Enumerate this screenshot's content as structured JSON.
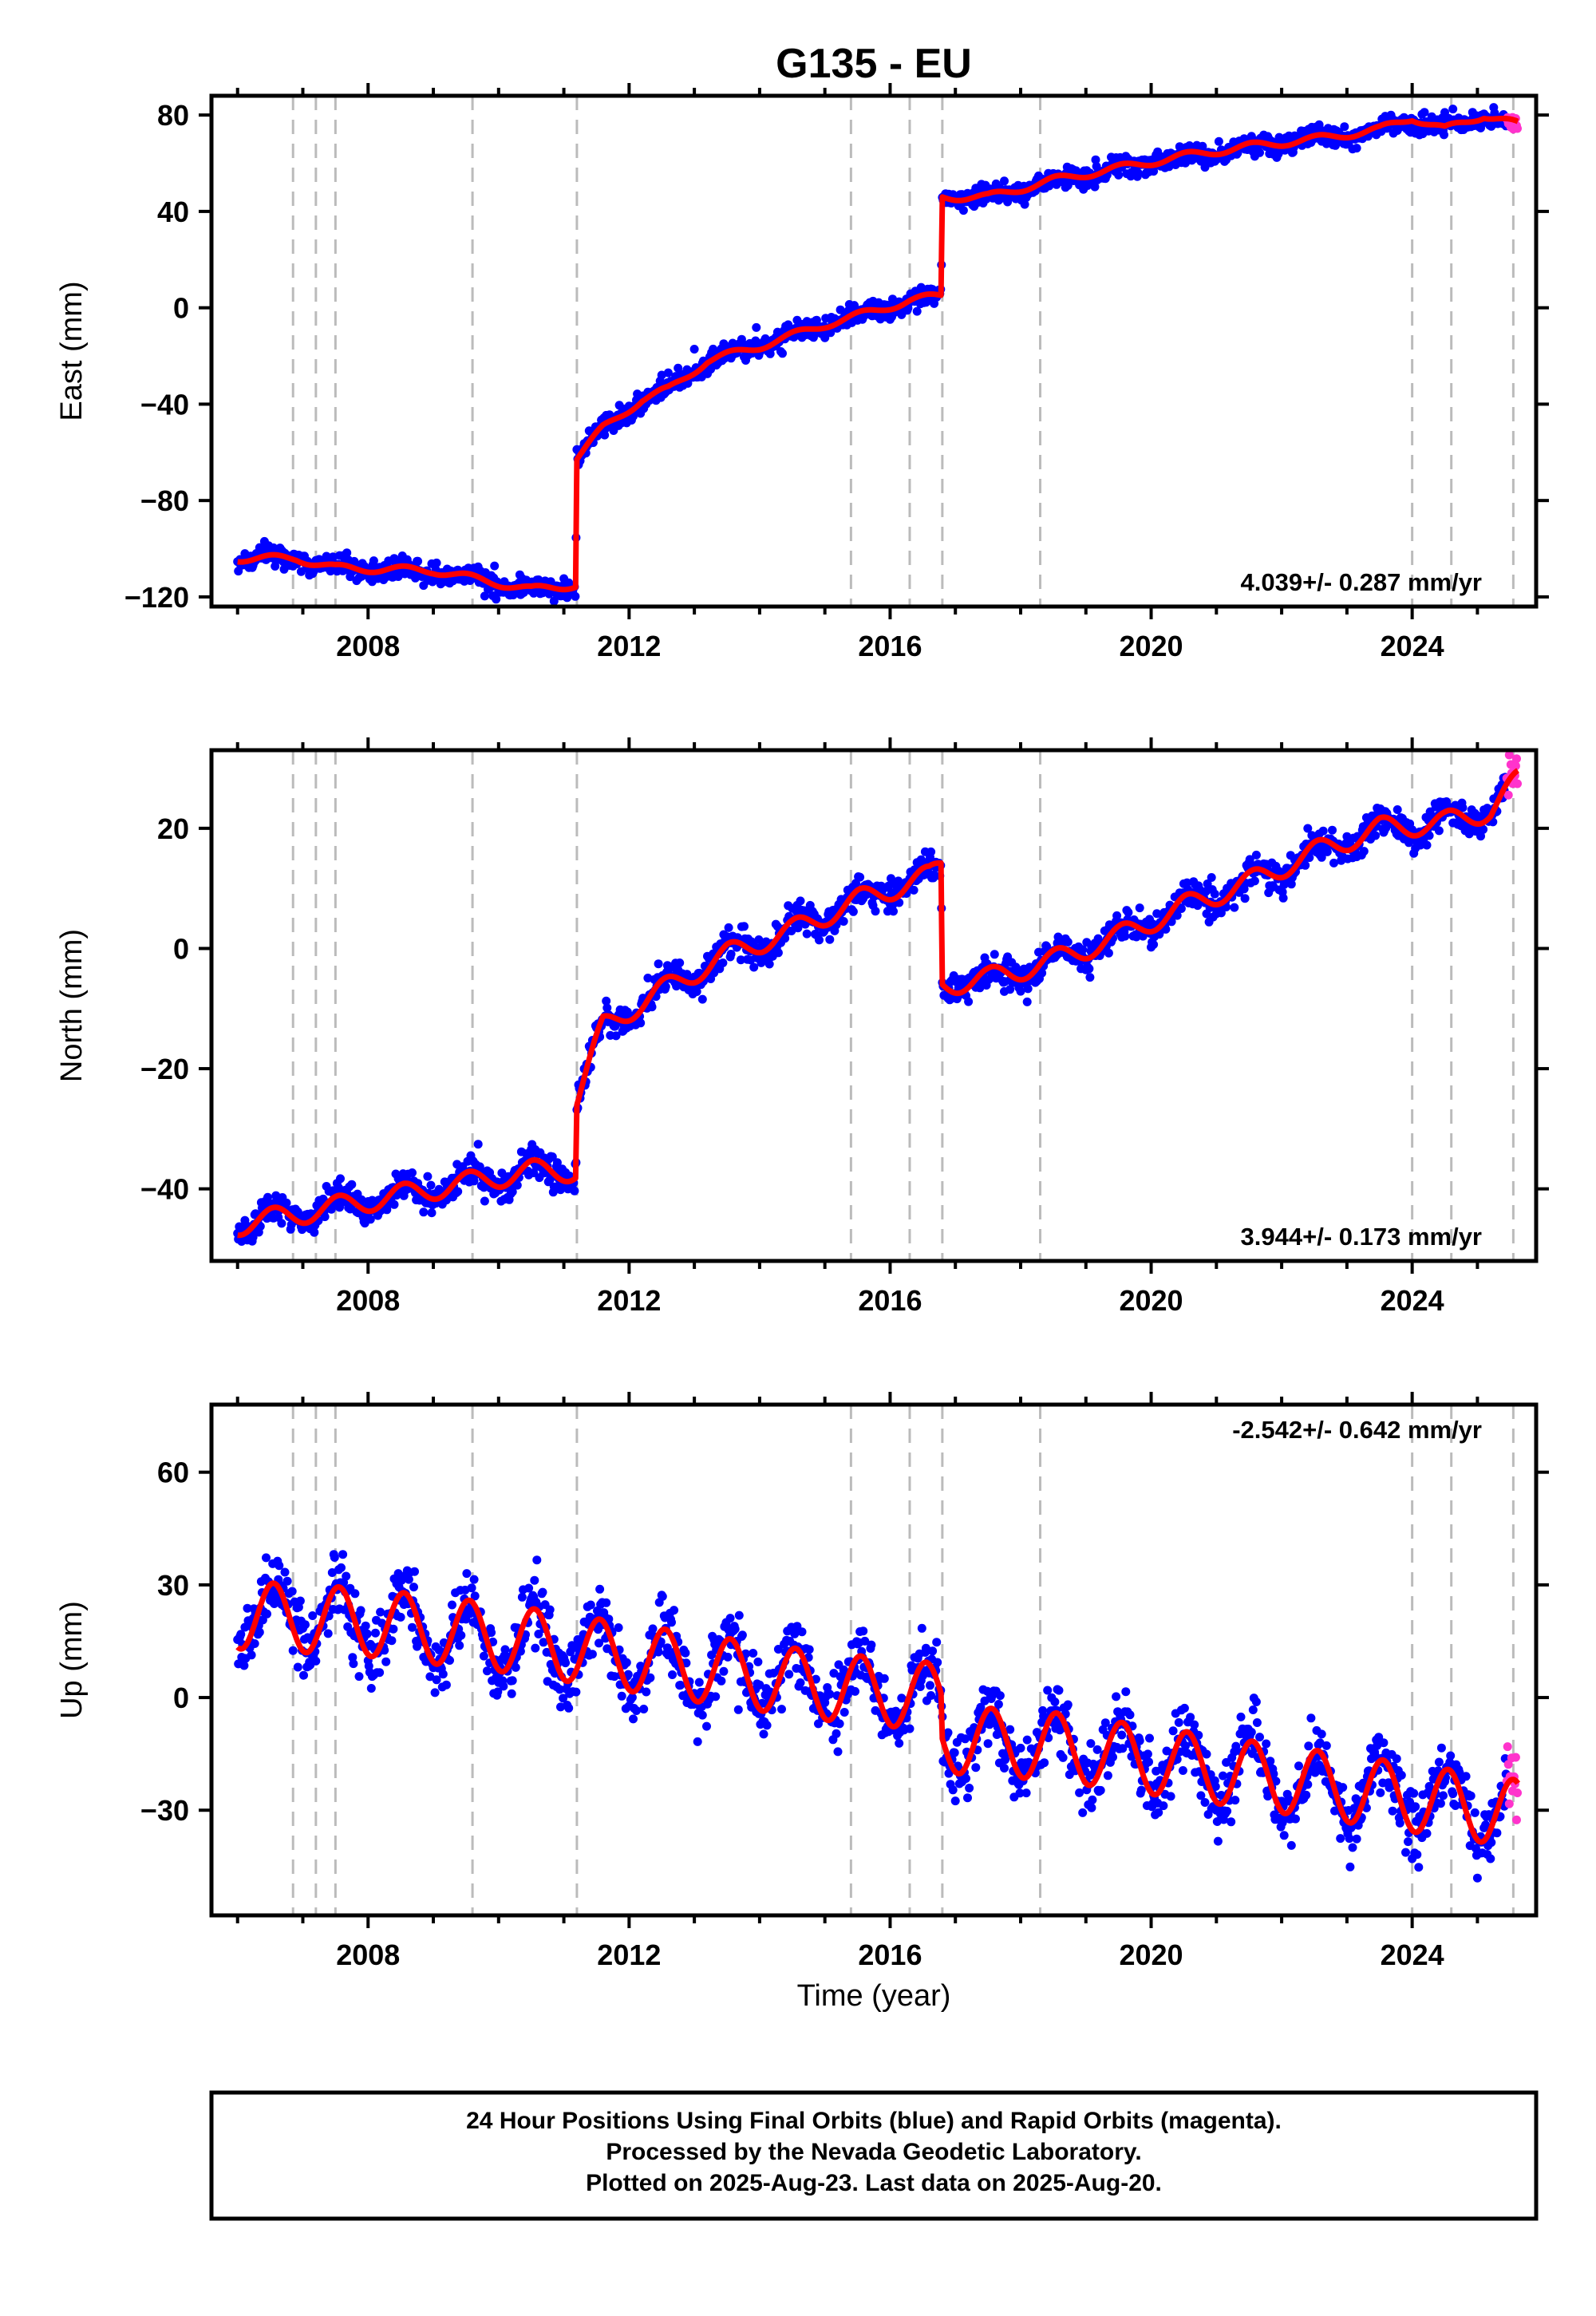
{
  "title": "G135 - EU",
  "xlabel": "Time (year)",
  "x_ticks": [
    "2008",
    "2012",
    "2016",
    "2020",
    "2024"
  ],
  "footer": {
    "line1": "24 Hour Positions Using Final Orbits (blue) and Rapid Orbits (magenta).",
    "line2": "Processed by the Nevada Geodetic Laboratory.",
    "line3": "Plotted on 2025-Aug-23. Last data on 2025-Aug-20."
  },
  "colors": {
    "final_orbits": "#0000ff",
    "rapid_orbits": "#ff33cc",
    "model_fit": "#ff0000",
    "event_lines": "#bbbbbb",
    "frame": "#000000"
  },
  "chart_data": [
    {
      "type": "scatter",
      "component": "east",
      "ylabel": "East (mm)",
      "rate_label": "4.039+/- 0.287 mm/yr",
      "rate_label_position": "bottom-right",
      "xlim": [
        2005.6,
        2025.9
      ],
      "ylim": [
        -124,
        88
      ],
      "y_ticks": [
        -120,
        -80,
        -40,
        0,
        40,
        80
      ],
      "event_lines": [
        2006.85,
        2007.2,
        2007.5,
        2009.6,
        2011.2,
        2015.4,
        2016.3,
        2016.8,
        2018.3,
        2024.0,
        2024.6,
        2025.55
      ],
      "rapid_start": 2025.45,
      "trend": [
        [
          2006.0,
          -104
        ],
        [
          2006.9,
          -104
        ],
        [
          2007.5,
          -108
        ],
        [
          2009.0,
          -109
        ],
        [
          2010.5,
          -117
        ],
        [
          2011.18,
          -115
        ],
        [
          2011.2,
          -62
        ],
        [
          2011.6,
          -50
        ],
        [
          2012.2,
          -38
        ],
        [
          2012.6,
          -34
        ],
        [
          2013.2,
          -22
        ],
        [
          2014.0,
          -16
        ],
        [
          2015.0,
          -7
        ],
        [
          2015.8,
          -1
        ],
        [
          2016.3,
          3
        ],
        [
          2016.78,
          5
        ],
        [
          2016.8,
          46
        ],
        [
          2017.5,
          46
        ],
        [
          2018.5,
          53
        ],
        [
          2019.5,
          58
        ],
        [
          2020.5,
          63
        ],
        [
          2021.5,
          67
        ],
        [
          2022.5,
          70
        ],
        [
          2023.5,
          74
        ],
        [
          2024.0,
          79
        ],
        [
          2024.5,
          74
        ],
        [
          2025.1,
          80
        ],
        [
          2025.62,
          76
        ]
      ],
      "seasonal_amplitude": 1.5,
      "noise": 2.2
    },
    {
      "type": "scatter",
      "component": "north",
      "ylabel": "North (mm)",
      "rate_label": "3.944+/- 0.173 mm/yr",
      "rate_label_position": "bottom-right",
      "xlim": [
        2005.6,
        2025.9
      ],
      "ylim": [
        -52,
        33
      ],
      "y_ticks": [
        -40,
        -20,
        0,
        20
      ],
      "event_lines": [
        2006.85,
        2007.2,
        2007.5,
        2009.6,
        2011.2,
        2015.4,
        2016.3,
        2016.8,
        2018.3,
        2024.0,
        2024.6,
        2025.55
      ],
      "rapid_start": 2025.45,
      "trend": [
        [
          2006.0,
          -46
        ],
        [
          2007.5,
          -43
        ],
        [
          2009.0,
          -40
        ],
        [
          2010.5,
          -37
        ],
        [
          2011.18,
          -37
        ],
        [
          2011.2,
          -25
        ],
        [
          2011.6,
          -13
        ],
        [
          2012.5,
          -7
        ],
        [
          2013.5,
          -1
        ],
        [
          2014.5,
          3
        ],
        [
          2015.5,
          8
        ],
        [
          2016.6,
          12
        ],
        [
          2016.78,
          14
        ],
        [
          2016.8,
          -6
        ],
        [
          2017.5,
          -5
        ],
        [
          2018.5,
          -2
        ],
        [
          2019.5,
          2
        ],
        [
          2020.5,
          7
        ],
        [
          2021.5,
          11
        ],
        [
          2022.5,
          16
        ],
        [
          2023.5,
          20
        ],
        [
          2024.5,
          21
        ],
        [
          2025.2,
          23
        ],
        [
          2025.62,
          28
        ]
      ],
      "seasonal_amplitude": 1.8,
      "noise": 1.3
    },
    {
      "type": "scatter",
      "component": "up",
      "ylabel": "Up (mm)",
      "rate_label": "-2.542+/- 0.642 mm/yr",
      "rate_label_position": "top-right",
      "xlim": [
        2005.6,
        2025.9
      ],
      "ylim": [
        -58,
        78
      ],
      "y_ticks": [
        -30,
        0,
        30,
        60
      ],
      "event_lines": [
        2006.85,
        2007.2,
        2007.5,
        2009.6,
        2011.2,
        2015.4,
        2016.3,
        2016.8,
        2018.3,
        2024.0,
        2024.6,
        2025.55
      ],
      "rapid_start": 2025.45,
      "trend": [
        [
          2006.0,
          22
        ],
        [
          2008.0,
          20
        ],
        [
          2010.0,
          16
        ],
        [
          2011.18,
          13
        ],
        [
          2011.5,
          12
        ],
        [
          2013.0,
          8
        ],
        [
          2015.0,
          3
        ],
        [
          2016.78,
          0
        ],
        [
          2016.8,
          -11
        ],
        [
          2018.5,
          -13
        ],
        [
          2020.5,
          -18
        ],
        [
          2022.5,
          -23
        ],
        [
          2024.5,
          -28
        ],
        [
          2025.62,
          -31
        ]
      ],
      "seasonal_amplitude": 9,
      "noise": 4.5
    }
  ]
}
